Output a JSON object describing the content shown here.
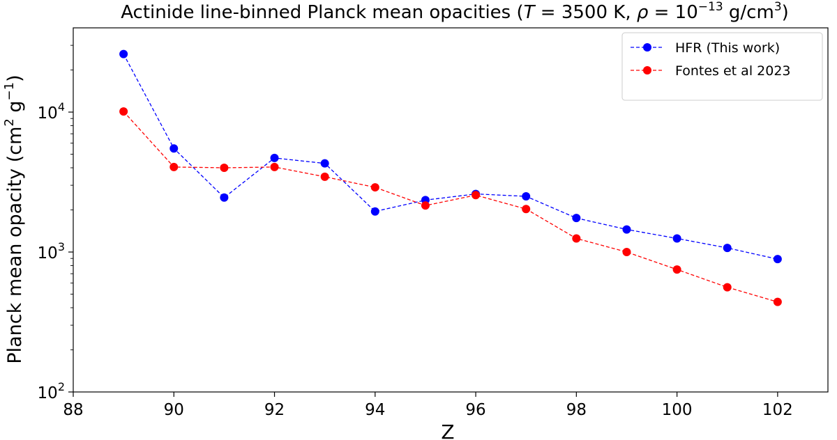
{
  "chart_data": {
    "type": "line",
    "title_prefix": "Actinide line-binned Planck mean opacities (",
    "title_T_symbol": "T",
    "title_T_value": " = 3500 K, ",
    "title_rho_symbol": "ρ",
    "title_rho_value": " = 10",
    "title_rho_exp": "−13",
    "title_rho_unit": " g/cm",
    "title_rho_unit_exp": "3",
    "title_suffix": ")",
    "xlabel": "Z",
    "ylabel_main": "Planck mean opacity (cm",
    "ylabel_sup1": "2",
    "ylabel_mid": " g",
    "ylabel_sup2": "−1",
    "ylabel_end": ")",
    "xlim": [
      88,
      103
    ],
    "ylim": [
      100,
      40000
    ],
    "yscale": "log",
    "xticks": [
      88,
      90,
      92,
      94,
      96,
      98,
      100,
      102
    ],
    "yticks": [
      {
        "value": 100,
        "base": "10",
        "exp": "2"
      },
      {
        "value": 1000,
        "base": "10",
        "exp": "3"
      },
      {
        "value": 10000,
        "base": "10",
        "exp": "4"
      }
    ],
    "x": [
      89,
      90,
      91,
      92,
      93,
      94,
      95,
      96,
      97,
      98,
      99,
      100,
      101,
      102
    ],
    "series": [
      {
        "name": "HFR (This work)",
        "color": "#0000ff",
        "values": [
          26000,
          5500,
          2450,
          4700,
          4300,
          1950,
          2350,
          2600,
          2500,
          1750,
          1450,
          1250,
          1070,
          890
        ]
      },
      {
        "name": "Fontes et al 2023",
        "color": "#ff0000",
        "values": [
          10100,
          4050,
          4000,
          4050,
          3450,
          2900,
          2150,
          2550,
          2030,
          1250,
          1000,
          750,
          560,
          440
        ]
      }
    ],
    "legend_position": "top-right",
    "grid": false
  }
}
